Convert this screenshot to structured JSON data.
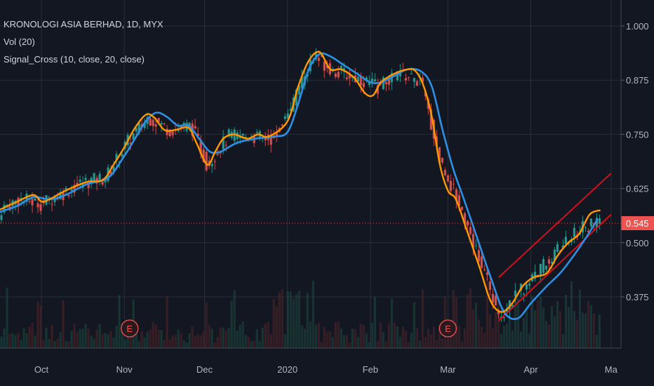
{
  "legend": {
    "symbol": "KRONOLOGI ASIA BERHAD, 1D, MYX",
    "volume": "Vol (20)",
    "indicator": "Signal_Cross (10, close, 20, close)"
  },
  "last_price": "0.545",
  "colors": {
    "background": "#131722",
    "grid": "#2a2e39",
    "up": "#26a69a",
    "down": "#ef5350",
    "fast_ma": "#ff9800",
    "slow_ma": "#2f8fe3",
    "channel": "#d0111c",
    "price_line": "#ef5350"
  },
  "events": [
    {
      "label": "E",
      "x": "Nov-03"
    },
    {
      "label": "E",
      "x": "Mar-01"
    }
  ],
  "chart_data": {
    "type": "line",
    "title": "KRONOLOGI ASIA BERHAD, 1D, MYX",
    "y_axis": {
      "range": [
        0.3,
        1.02
      ],
      "ticks": [
        "1.000",
        "0.875",
        "0.750",
        "0.625",
        "0.500",
        "0.375"
      ],
      "tick_values": [
        1.0,
        0.875,
        0.75,
        0.625,
        0.5,
        0.375
      ]
    },
    "x_axis": {
      "range": [
        "Sep-15",
        "Apr-30"
      ],
      "ticks": [
        {
          "label": "Oct",
          "date": "Oct-01"
        },
        {
          "label": "Nov",
          "date": "Nov-01"
        },
        {
          "label": "Dec",
          "date": "Dec-01"
        },
        {
          "label": "2020",
          "date": "Jan-01"
        },
        {
          "label": "Feb",
          "date": "Feb-01"
        },
        {
          "label": "Mar",
          "date": "Mar-01"
        },
        {
          "label": "Apr",
          "date": "Apr-01"
        },
        {
          "label": "Ma",
          "date": "May-01"
        }
      ]
    },
    "series": [
      {
        "name": "close (10)",
        "values": [
          [
            "Sep-15",
            0.575
          ],
          [
            "Sep-22",
            0.595
          ],
          [
            "Sep-28",
            0.61
          ],
          [
            "Oct-01",
            0.595
          ],
          [
            "Oct-04",
            0.6
          ],
          [
            "Oct-10",
            0.62
          ],
          [
            "Oct-18",
            0.64
          ],
          [
            "Oct-24",
            0.645
          ],
          [
            "Oct-28",
            0.68
          ],
          [
            "Nov-01",
            0.72
          ],
          [
            "Nov-05",
            0.765
          ],
          [
            "Nov-09",
            0.795
          ],
          [
            "Nov-12",
            0.79
          ],
          [
            "Nov-16",
            0.76
          ],
          [
            "Nov-20",
            0.76
          ],
          [
            "Nov-25",
            0.765
          ],
          [
            "Nov-28",
            0.73
          ],
          [
            "Dec-02",
            0.68
          ],
          [
            "Dec-05",
            0.71
          ],
          [
            "Dec-08",
            0.74
          ],
          [
            "Dec-12",
            0.75
          ],
          [
            "Dec-17",
            0.74
          ],
          [
            "Dec-21",
            0.75
          ],
          [
            "Dec-25",
            0.745
          ],
          [
            "Jan-01",
            0.78
          ],
          [
            "Jan-05",
            0.86
          ],
          [
            "Jan-09",
            0.92
          ],
          [
            "Jan-13",
            0.94
          ],
          [
            "Jan-17",
            0.9
          ],
          [
            "Jan-21",
            0.9
          ],
          [
            "Jan-26",
            0.88
          ],
          [
            "Jan-30",
            0.845
          ],
          [
            "Feb-02",
            0.84
          ],
          [
            "Feb-05",
            0.87
          ],
          [
            "Feb-10",
            0.89
          ],
          [
            "Feb-15",
            0.9
          ],
          [
            "Feb-18",
            0.895
          ],
          [
            "Feb-21",
            0.86
          ],
          [
            "Feb-24",
            0.79
          ],
          [
            "Feb-27",
            0.68
          ],
          [
            "Mar-01",
            0.62
          ],
          [
            "Mar-04",
            0.6
          ],
          [
            "Mar-08",
            0.53
          ],
          [
            "Mar-13",
            0.44
          ],
          [
            "Mar-17",
            0.365
          ],
          [
            "Mar-21",
            0.34
          ],
          [
            "Mar-25",
            0.36
          ],
          [
            "Mar-29",
            0.4
          ],
          [
            "Apr-02",
            0.42
          ],
          [
            "Apr-07",
            0.43
          ],
          [
            "Apr-11",
            0.47
          ],
          [
            "Apr-15",
            0.5
          ],
          [
            "Apr-19",
            0.52
          ],
          [
            "Apr-23",
            0.565
          ],
          [
            "Apr-27",
            0.575
          ]
        ]
      },
      {
        "name": "close (20)",
        "values": [
          [
            "Sep-15",
            0.57
          ],
          [
            "Sep-22",
            0.585
          ],
          [
            "Sep-28",
            0.605
          ],
          [
            "Oct-04",
            0.6
          ],
          [
            "Oct-10",
            0.61
          ],
          [
            "Oct-18",
            0.635
          ],
          [
            "Oct-26",
            0.65
          ],
          [
            "Nov-01",
            0.7
          ],
          [
            "Nov-05",
            0.74
          ],
          [
            "Nov-09",
            0.78
          ],
          [
            "Nov-13",
            0.8
          ],
          [
            "Nov-17",
            0.79
          ],
          [
            "Nov-21",
            0.77
          ],
          [
            "Nov-25",
            0.77
          ],
          [
            "Nov-29",
            0.74
          ],
          [
            "Dec-03",
            0.71
          ],
          [
            "Dec-07",
            0.71
          ],
          [
            "Dec-13",
            0.73
          ],
          [
            "Dec-20",
            0.74
          ],
          [
            "Dec-27",
            0.745
          ],
          [
            "Jan-01",
            0.755
          ],
          [
            "Jan-05",
            0.82
          ],
          [
            "Jan-09",
            0.9
          ],
          [
            "Jan-13",
            0.935
          ],
          [
            "Jan-17",
            0.93
          ],
          [
            "Jan-22",
            0.91
          ],
          [
            "Jan-27",
            0.89
          ],
          [
            "Feb-01",
            0.87
          ],
          [
            "Feb-05",
            0.87
          ],
          [
            "Feb-10",
            0.885
          ],
          [
            "Feb-15",
            0.9
          ],
          [
            "Feb-20",
            0.895
          ],
          [
            "Feb-24",
            0.86
          ],
          [
            "Feb-28",
            0.76
          ],
          [
            "Mar-03",
            0.67
          ],
          [
            "Mar-07",
            0.6
          ],
          [
            "Mar-12",
            0.51
          ],
          [
            "Mar-17",
            0.42
          ],
          [
            "Mar-22",
            0.34
          ],
          [
            "Mar-27",
            0.325
          ],
          [
            "Apr-01",
            0.36
          ],
          [
            "Apr-07",
            0.4
          ],
          [
            "Apr-12",
            0.43
          ],
          [
            "Apr-17",
            0.47
          ],
          [
            "Apr-22",
            0.515
          ],
          [
            "Apr-26",
            0.555
          ]
        ]
      },
      {
        "name": "close",
        "values": [
          [
            "Sep-15",
            0.575
          ],
          [
            "Sep-23",
            0.6
          ],
          [
            "Oct-01",
            0.59
          ],
          [
            "Oct-09",
            0.615
          ],
          [
            "Oct-17",
            0.64
          ],
          [
            "Oct-25",
            0.65
          ],
          [
            "Nov-02",
            0.73
          ],
          [
            "Nov-10",
            0.79
          ],
          [
            "Nov-18",
            0.76
          ],
          [
            "Nov-26",
            0.77
          ],
          [
            "Dec-02",
            0.68
          ],
          [
            "Dec-10",
            0.745
          ],
          [
            "Dec-18",
            0.745
          ],
          [
            "Dec-26",
            0.74
          ],
          [
            "Jan-03",
            0.82
          ],
          [
            "Jan-11",
            0.93
          ],
          [
            "Jan-19",
            0.895
          ],
          [
            "Jan-27",
            0.88
          ],
          [
            "Feb-04",
            0.86
          ],
          [
            "Feb-12",
            0.89
          ],
          [
            "Feb-20",
            0.87
          ],
          [
            "Feb-27",
            0.69
          ],
          [
            "Mar-06",
            0.58
          ],
          [
            "Mar-14",
            0.44
          ],
          [
            "Mar-20",
            0.33
          ],
          [
            "Mar-27",
            0.38
          ],
          [
            "Apr-03",
            0.43
          ],
          [
            "Apr-11",
            0.48
          ],
          [
            "Apr-19",
            0.53
          ],
          [
            "Apr-27",
            0.545
          ]
        ]
      }
    ],
    "channel": [
      {
        "from": [
          "Mar-20",
          0.42
        ],
        "to": [
          "May-01",
          0.66
        ]
      },
      {
        "from": [
          "Mar-20",
          0.32
        ],
        "to": [
          "May-01",
          0.565
        ]
      }
    ]
  }
}
